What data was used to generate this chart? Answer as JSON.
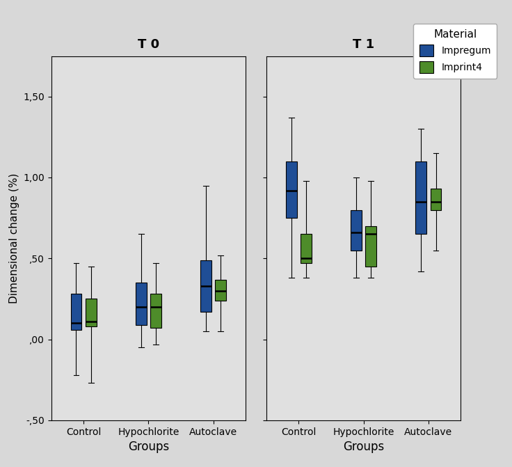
{
  "title_left": "T 0",
  "title_right": "T 1",
  "xlabel": "Groups",
  "ylabel": "Dimensional change (%)",
  "ylim": [
    -0.5,
    1.75
  ],
  "yticks": [
    -0.5,
    0.0,
    0.5,
    1.0,
    1.5
  ],
  "yticklabels": [
    "-,50",
    ",00",
    ",50",
    "1,00",
    "1,50"
  ],
  "panel_bg": "#e0e0e0",
  "fig_bg": "#d8d8d8",
  "legend_title": "Material",
  "legend_labels": [
    "Impregum",
    "Imprint4"
  ],
  "blue_color": "#1f4e96",
  "green_color": "#4e8c2a",
  "groups": [
    "Control",
    "Hypochlorite",
    "Autoclave"
  ],
  "T0": {
    "Control": {
      "Impregum": {
        "whislo": -0.22,
        "q1": 0.06,
        "med": 0.1,
        "q3": 0.28,
        "whishi": 0.47
      },
      "Imprint4": {
        "whislo": -0.27,
        "q1": 0.08,
        "med": 0.11,
        "q3": 0.25,
        "whishi": 0.45
      }
    },
    "Hypochlorite": {
      "Impregum": {
        "whislo": -0.05,
        "q1": 0.09,
        "med": 0.2,
        "q3": 0.35,
        "whishi": 0.65
      },
      "Imprint4": {
        "whislo": -0.03,
        "q1": 0.07,
        "med": 0.2,
        "q3": 0.28,
        "whishi": 0.47
      }
    },
    "Autoclave": {
      "Impregum": {
        "whislo": 0.05,
        "q1": 0.17,
        "med": 0.33,
        "q3": 0.49,
        "whishi": 0.95
      },
      "Imprint4": {
        "whislo": 0.05,
        "q1": 0.24,
        "med": 0.3,
        "q3": 0.37,
        "whishi": 0.52
      }
    }
  },
  "T1": {
    "Control": {
      "Impregum": {
        "whislo": 0.38,
        "q1": 0.75,
        "med": 0.92,
        "q3": 1.1,
        "whishi": 1.37
      },
      "Imprint4": {
        "whislo": 0.38,
        "q1": 0.47,
        "med": 0.5,
        "q3": 0.65,
        "whishi": 0.98
      }
    },
    "Hypochlorite": {
      "Impregum": {
        "whislo": 0.38,
        "q1": 0.55,
        "med": 0.66,
        "q3": 0.8,
        "whishi": 1.0
      },
      "Imprint4": {
        "whislo": 0.38,
        "q1": 0.45,
        "med": 0.65,
        "q3": 0.7,
        "whishi": 0.98
      }
    },
    "Autoclave": {
      "Impregum": {
        "whislo": 0.42,
        "q1": 0.65,
        "med": 0.85,
        "q3": 1.1,
        "whishi": 1.3
      },
      "Imprint4": {
        "whislo": 0.55,
        "q1": 0.8,
        "med": 0.85,
        "q3": 0.93,
        "whishi": 1.15
      }
    }
  }
}
